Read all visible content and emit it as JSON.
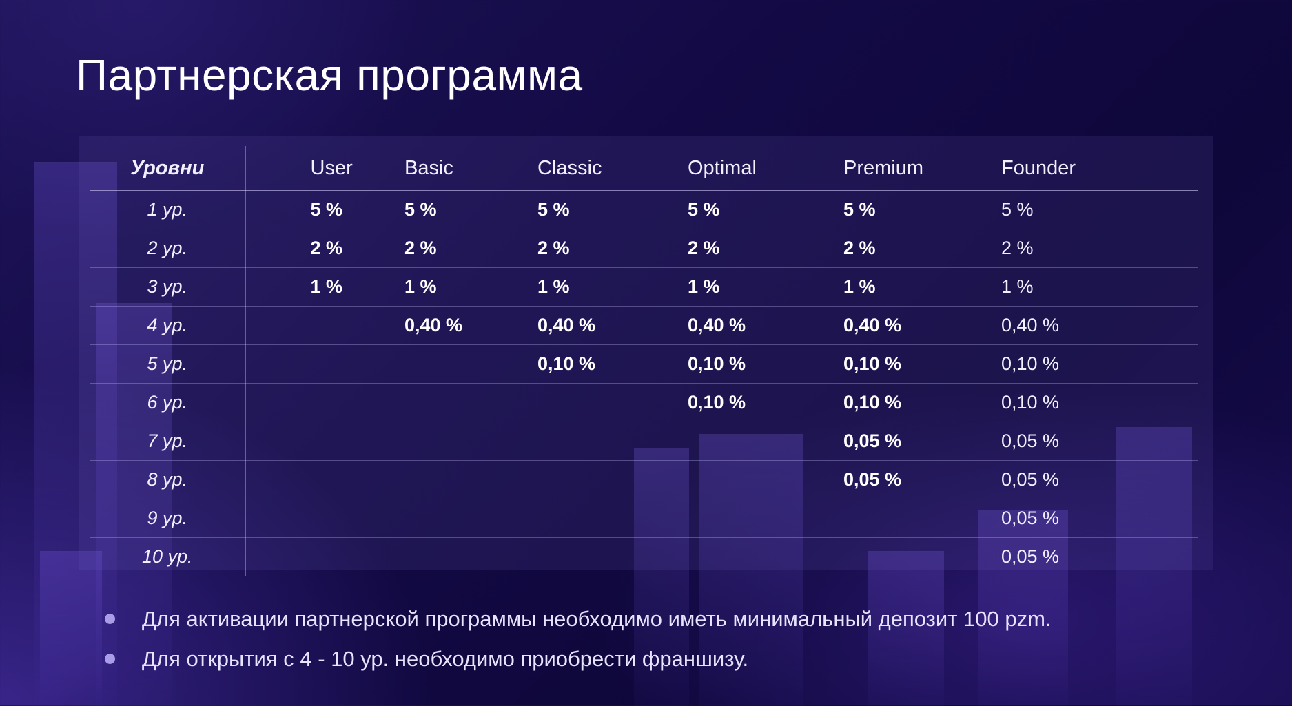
{
  "title": "Партнерская программа",
  "table": {
    "headers": [
      "Уровни",
      "User",
      "Basic",
      "Classic",
      "Optimal",
      "Premium",
      "Founder"
    ],
    "rows": [
      {
        "level": "1 ур.",
        "user": "5 %",
        "basic": "5 %",
        "classic": "5 %",
        "optimal": "5 %",
        "premium": "5 %",
        "founder": "5 %"
      },
      {
        "level": "2 ур.",
        "user": "2 %",
        "basic": "2 %",
        "classic": "2 %",
        "optimal": "2 %",
        "premium": "2 %",
        "founder": "2 %"
      },
      {
        "level": "3 ур.",
        "user": "1 %",
        "basic": "1 %",
        "classic": "1 %",
        "optimal": "1 %",
        "premium": "1 %",
        "founder": "1 %"
      },
      {
        "level": "4 ур.",
        "user": "",
        "basic": "0,40 %",
        "classic": "0,40 %",
        "optimal": "0,40 %",
        "premium": "0,40 %",
        "founder": "0,40 %"
      },
      {
        "level": "5 ур.",
        "user": "",
        "basic": "",
        "classic": "0,10 %",
        "optimal": "0,10 %",
        "premium": "0,10 %",
        "founder": "0,10 %"
      },
      {
        "level": "6 ур.",
        "user": "",
        "basic": "",
        "classic": "",
        "optimal": "0,10 %",
        "premium": "0,10 %",
        "founder": "0,10 %"
      },
      {
        "level": "7 ур.",
        "user": "",
        "basic": "",
        "classic": "",
        "optimal": "",
        "premium": "0,05 %",
        "founder": "0,05 %"
      },
      {
        "level": "8 ур.",
        "user": "",
        "basic": "",
        "classic": "",
        "optimal": "",
        "premium": "0,05 %",
        "founder": "0,05 %"
      },
      {
        "level": "9 ур.",
        "user": "",
        "basic": "",
        "classic": "",
        "optimal": "",
        "premium": "",
        "founder": "0,05 %"
      },
      {
        "level": "10 ур.",
        "user": "",
        "basic": "",
        "classic": "",
        "optimal": "",
        "premium": "",
        "founder": "0,05 %"
      }
    ]
  },
  "notes": [
    "Для активации партнерской программы необходимо иметь минимальный депозит 100 pzm.",
    "Для открытия с 4 - 10 ур. необходимо приобрести франшизу."
  ],
  "colors": {
    "background": "#130a45",
    "bullet": "#a99ce8",
    "text": "#ffffff"
  }
}
